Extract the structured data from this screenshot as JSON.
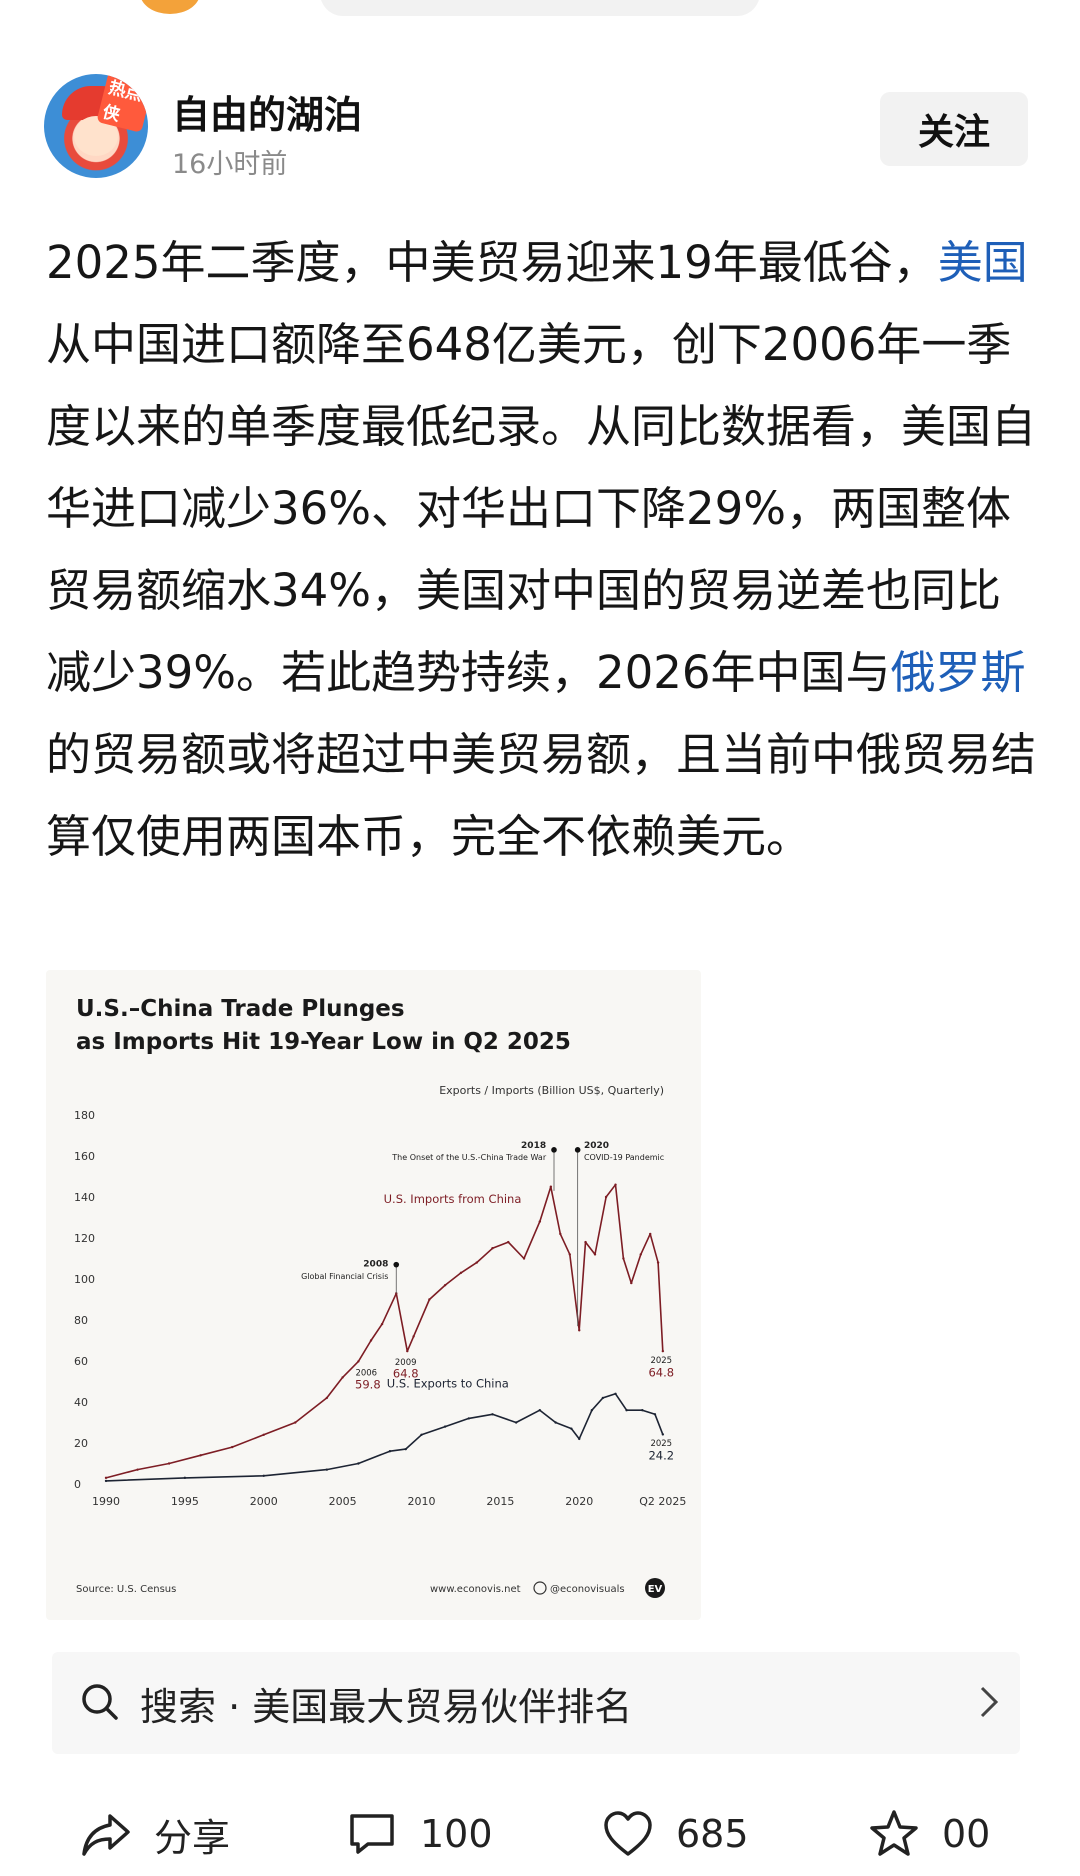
{
  "author": {
    "name": "自由的湖泊",
    "time": "16小时前",
    "avatar_badge": "热点侠"
  },
  "follow_label": "关注",
  "post": {
    "t1": "2025年二季度，中美贸易迎来19年最低谷，",
    "link1": "美国",
    "t2": "从中国进口额降至648亿美元，创下2006年一季度以来的单季度最低纪录。从同比数据看，美国自华进口减少36%、对华出口下降29%，两国整体贸易额缩水34%，美国对中国的贸易逆差也同比减少39%。若此趋势持续，2026年中国与",
    "link2": "俄罗斯",
    "t3": "的贸易额或将超过中美贸易额，且当前中俄贸易结算仅使用两国本币，完全不依赖美元。"
  },
  "chart_data": {
    "type": "line",
    "title_line1": "U.S.–China Trade Plunges",
    "title_line2": "as Imports Hit 19-Year Low in Q2 2025",
    "units_label": "Exports / Imports (Billion US$, Quarterly)",
    "ylim": [
      0,
      180
    ],
    "yticks": [
      "0",
      "20",
      "40",
      "60",
      "80",
      "100",
      "120",
      "140",
      "160",
      "180"
    ],
    "xlim": [
      1990,
      2025.5
    ],
    "xticks": [
      {
        "year": 1990,
        "label": "1990"
      },
      {
        "year": 1995,
        "label": "1995"
      },
      {
        "year": 2000,
        "label": "2000"
      },
      {
        "year": 2005,
        "label": "2005"
      },
      {
        "year": 2010,
        "label": "2010"
      },
      {
        "year": 2015,
        "label": "2015"
      },
      {
        "year": 2020,
        "label": "2020"
      },
      {
        "year": 2025.3,
        "label": "Q2 2025"
      }
    ],
    "grid": false,
    "series": [
      {
        "name": "U.S. Imports from China",
        "color": "#7d1d24",
        "x": [
          1990,
          1992,
          1994,
          1996,
          1998,
          2000,
          2002,
          2004,
          2005,
          2006,
          2006.8,
          2007.5,
          2008.4,
          2009.1,
          2009.5,
          2010.5,
          2011.5,
          2012.5,
          2013.5,
          2014.5,
          2015.5,
          2016.5,
          2017.5,
          2018.2,
          2018.8,
          2019.4,
          2020.0,
          2020.4,
          2021.0,
          2021.7,
          2022.3,
          2022.8,
          2023.3,
          2023.9,
          2024.5,
          2025.0,
          2025.3
        ],
        "values": [
          3,
          7,
          10,
          14,
          18,
          24,
          30,
          42,
          52,
          59.8,
          70,
          78,
          93,
          64.8,
          72,
          90,
          97,
          103,
          108,
          115,
          118,
          110,
          128,
          145,
          122,
          112,
          75,
          118,
          112,
          140,
          146,
          110,
          98,
          112,
          122,
          108,
          64.8
        ]
      },
      {
        "name": "U.S. Exports to China",
        "color": "#1d2433",
        "x": [
          1990,
          1995,
          2000,
          2004,
          2006,
          2008,
          2009,
          2010,
          2011.5,
          2013,
          2014.5,
          2016,
          2017.5,
          2018.5,
          2019.5,
          2020.0,
          2020.8,
          2021.5,
          2022.3,
          2023,
          2024,
          2024.8,
          2025.3
        ],
        "values": [
          1.5,
          3,
          4,
          7,
          10,
          16,
          17,
          24,
          28,
          32,
          34,
          30,
          36,
          30,
          27,
          22,
          36,
          42,
          44,
          36,
          36,
          34,
          24.2
        ]
      }
    ],
    "annotations": [
      {
        "year_label": "2018",
        "text": "The Onset of the U.S.-China Trade War"
      },
      {
        "year_label": "2020",
        "text": "COVID-19 Pandemic"
      },
      {
        "year_label": "2008",
        "text": "Global Financial Crisis"
      },
      {
        "year_label": "2006",
        "value": "59.8"
      },
      {
        "year_label": "2009",
        "value": "64.8"
      },
      {
        "year_label": "2025",
        "value": "64.8"
      },
      {
        "year_label": "2025",
        "value": "24.2"
      }
    ],
    "source": "Source: U.S. Census",
    "website": "www.econovis.net",
    "handle": "@econovisuals",
    "logo": "EV"
  },
  "search": {
    "label": "搜索 · 美国最大贸易伙伴排名"
  },
  "actions": {
    "share_label": "分享",
    "comments": "100",
    "likes": "685",
    "favorites": "00"
  }
}
